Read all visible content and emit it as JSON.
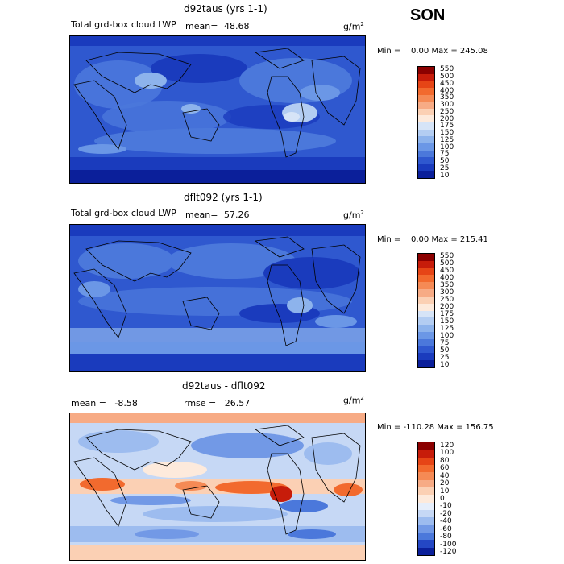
{
  "season": "SON",
  "panels": [
    {
      "title": "d92taus (yrs 1-1)",
      "variable": "Total grd-box cloud LWP",
      "mean_label": "mean=",
      "mean_value": "48.68",
      "units": "g/m",
      "units_exp": "2",
      "minmax": "Min =    0.00 Max = 245.08",
      "theme": "abs",
      "levels": [
        "550",
        "500",
        "450",
        "400",
        "350",
        "300",
        "250",
        "200",
        "175",
        "150",
        "125",
        "100",
        "75",
        "50",
        "25",
        "10"
      ],
      "colors": [
        "#8b0000",
        "#c71c0a",
        "#e64516",
        "#f26a2e",
        "#f58a55",
        "#f7ab85",
        "#fbd0b4",
        "#fdeadc",
        "#d6e4f7",
        "#b3cdf2",
        "#8db3ec",
        "#6b97e6",
        "#4b78db",
        "#2f58cf",
        "#1a3bbd",
        "#0b1f9a"
      ]
    },
    {
      "title": "dflt092 (yrs 1-1)",
      "variable": "Total grd-box cloud LWP",
      "mean_label": "mean=",
      "mean_value": "57.26",
      "units": "g/m",
      "units_exp": "2",
      "minmax": "Min =    0.00 Max = 215.41",
      "theme": "abs",
      "levels": [
        "550",
        "500",
        "450",
        "400",
        "350",
        "300",
        "250",
        "200",
        "175",
        "150",
        "125",
        "100",
        "75",
        "50",
        "25",
        "10"
      ],
      "colors": [
        "#8b0000",
        "#c71c0a",
        "#e64516",
        "#f26a2e",
        "#f58a55",
        "#f7ab85",
        "#fbd0b4",
        "#fdeadc",
        "#d6e4f7",
        "#b3cdf2",
        "#8db3ec",
        "#6b97e6",
        "#4b78db",
        "#2f58cf",
        "#1a3bbd",
        "#0b1f9a"
      ]
    },
    {
      "title": "d92taus - dflt092",
      "mean_text": "mean =   -8.58",
      "rmse_text": "rmse =   26.57",
      "units": "g/m",
      "units_exp": "2",
      "minmax": "Min = -110.28 Max = 156.75",
      "theme": "diff",
      "levels": [
        "120",
        "100",
        "80",
        "60",
        "40",
        "20",
        "10",
        "0",
        "-10",
        "-20",
        "-40",
        "-60",
        "-80",
        "-100",
        "-120"
      ],
      "colors": [
        "#8b0000",
        "#c71c0a",
        "#e64516",
        "#f26a2e",
        "#f58a55",
        "#f7ab85",
        "#fbd0b4",
        "#fdeadc",
        "#e6eefb",
        "#c6d8f5",
        "#9dbcef",
        "#7299e6",
        "#4b78db",
        "#2447c4",
        "#0b1f9a"
      ]
    }
  ]
}
